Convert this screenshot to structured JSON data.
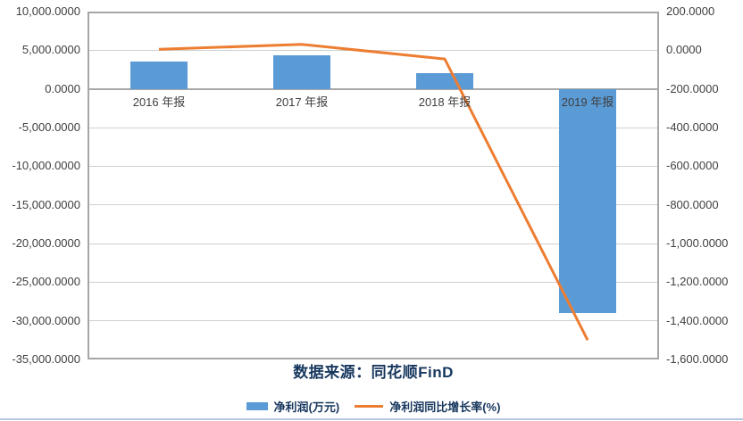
{
  "chart_data": {
    "type": "combo",
    "categories": [
      "2016 年报",
      "2017 年报",
      "2018 年报",
      "2019 年报"
    ],
    "series": [
      {
        "name": "净利润(万元)",
        "type": "bar",
        "axis": "left",
        "color": "#5B9BD5",
        "values": [
          3500,
          4300,
          2000,
          -29000
        ]
      },
      {
        "name": "净利润同比增长率(%)",
        "type": "line",
        "axis": "right",
        "color": "#ED7D31",
        "values": [
          5,
          30,
          -45,
          -1500
        ]
      }
    ],
    "left_axis": {
      "max": 10000,
      "min": -35000,
      "step": 5000,
      "ticks": [
        "10,000.0000",
        "5,000.0000",
        "0.0000",
        "-5,000.0000",
        "-10,000.0000",
        "-15,000.0000",
        "-20,000.0000",
        "-25,000.0000",
        "-30,000.0000",
        "-35,000.0000"
      ]
    },
    "right_axis": {
      "max": 200,
      "min": -1600,
      "step": 200,
      "ticks": [
        "200.0000",
        "0.0000",
        "-200.0000",
        "-400.0000",
        "-600.0000",
        "-800.0000",
        "-1,000.0000",
        "-1,200.0000",
        "-1,400.0000",
        "-1,600.0000"
      ]
    },
    "grid": true,
    "legend_position": "bottom",
    "title": "",
    "xlabel": "",
    "ylabel": ""
  },
  "source": {
    "text": "数据来源：同花顺FinD"
  },
  "legend": {
    "bar_label": "净利润(万元)",
    "line_label": "净利润同比增长率(%)"
  },
  "colors": {
    "bar": "#5B9BD5",
    "line": "#ED7D31",
    "navy_text": "#17375E",
    "axis_text": "#404040"
  }
}
